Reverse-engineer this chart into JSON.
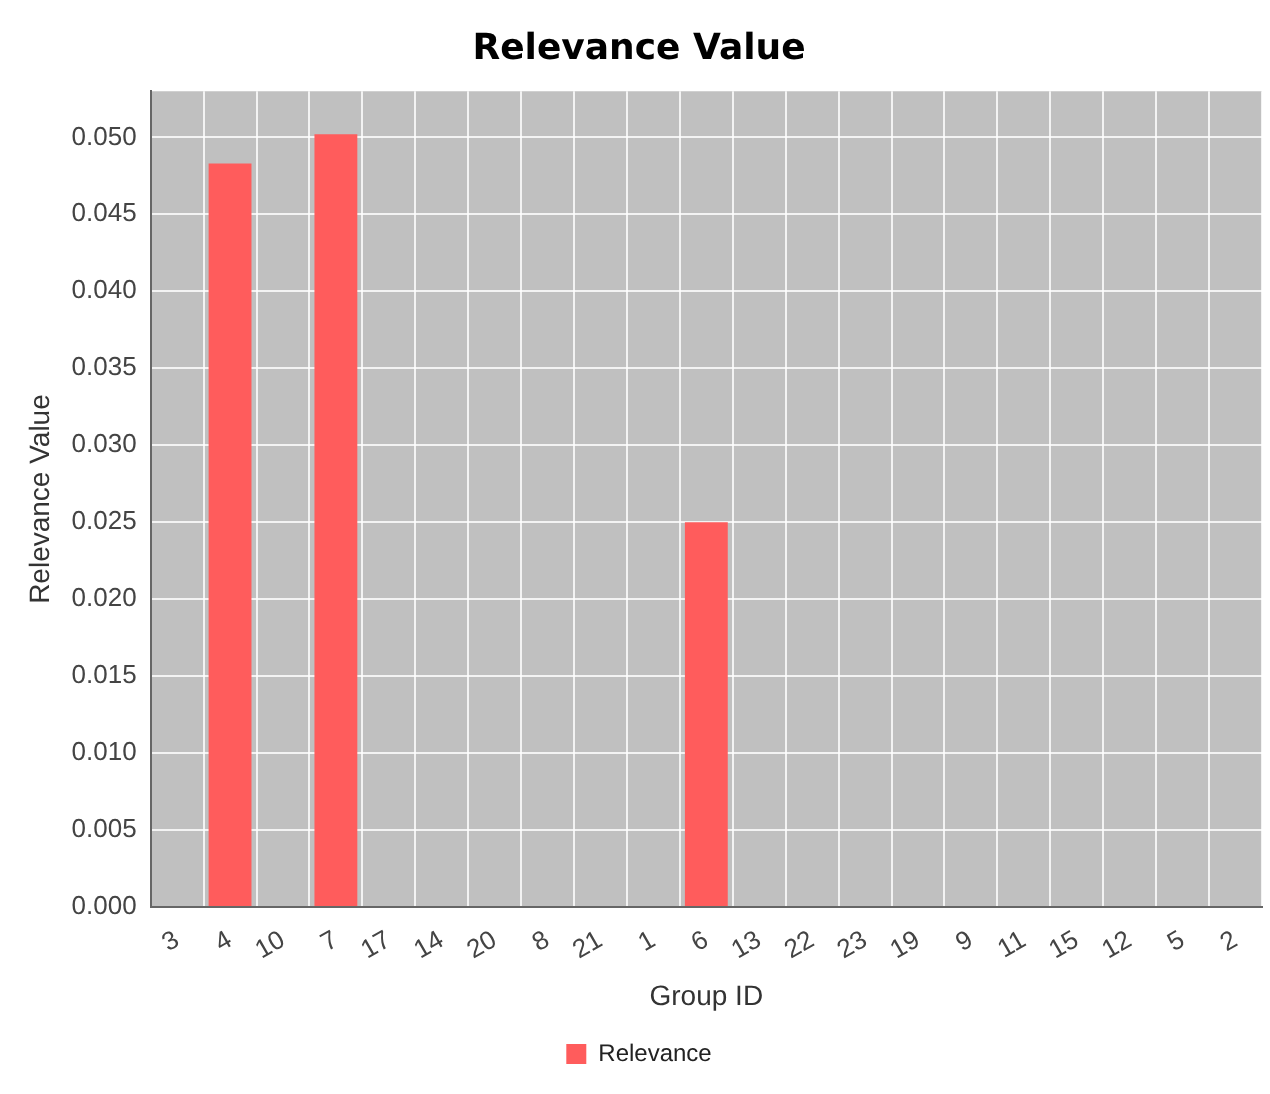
{
  "chart_data": {
    "type": "bar",
    "title": "Relevance Value",
    "xlabel": "Group ID",
    "ylabel": "Relevance Value",
    "categories": [
      "3",
      "4",
      "10",
      "7",
      "17",
      "14",
      "20",
      "8",
      "21",
      "1",
      "6",
      "13",
      "22",
      "23",
      "19",
      "9",
      "11",
      "15",
      "12",
      "5",
      "2"
    ],
    "series": [
      {
        "name": "Relevance",
        "color": "#ff5c5c",
        "values": [
          0,
          0.0483,
          0,
          0.0502,
          0,
          0,
          0,
          0,
          0,
          0,
          0.025,
          0,
          0,
          0,
          0,
          0,
          0,
          0,
          0,
          0,
          0
        ]
      }
    ],
    "ylim": [
      0,
      0.053
    ],
    "yticks": [
      {
        "value": 0,
        "label": "0.000"
      },
      {
        "value": 0.005,
        "label": "0.005"
      },
      {
        "value": 0.01,
        "label": "0.010"
      },
      {
        "value": 0.015,
        "label": "0.015"
      },
      {
        "value": 0.02,
        "label": "0.020"
      },
      {
        "value": 0.025,
        "label": "0.025"
      },
      {
        "value": 0.03,
        "label": "0.030"
      },
      {
        "value": 0.035,
        "label": "0.035"
      },
      {
        "value": 0.04,
        "label": "0.040"
      },
      {
        "value": 0.045,
        "label": "0.045"
      },
      {
        "value": 0.05,
        "label": "0.050"
      }
    ],
    "grid": true,
    "legend": "bottom"
  }
}
